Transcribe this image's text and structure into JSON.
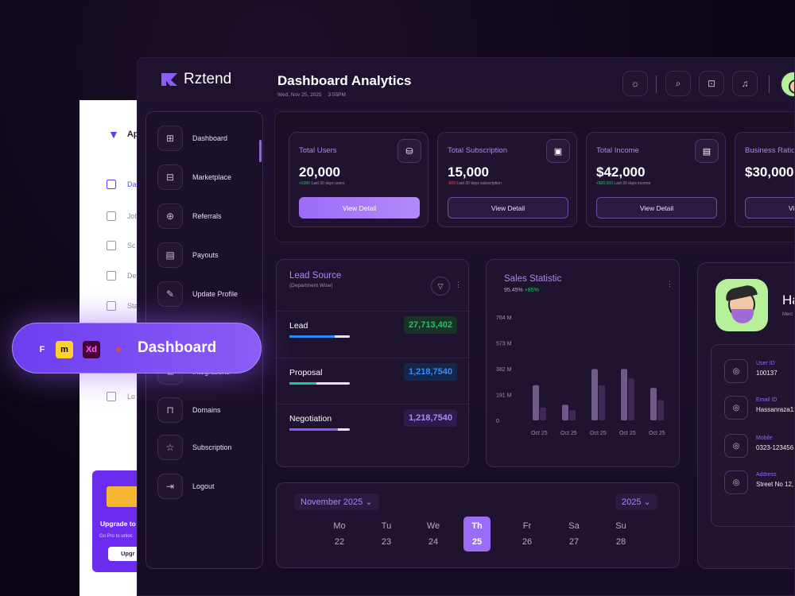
{
  "back_window": {
    "logo_text": "Ap",
    "items": [
      {
        "label": "Da",
        "icon": "grid-icon",
        "active": true
      },
      {
        "label": "Job",
        "icon": "briefcase-icon"
      },
      {
        "label": "Sc",
        "icon": "calendar-icon"
      },
      {
        "label": "De",
        "icon": "folder-icon"
      },
      {
        "label": "Sta",
        "icon": "chart-icon"
      },
      {
        "label": "Lo",
        "icon": "logout-icon"
      }
    ],
    "upgrade_title": "Upgrade to",
    "upgrade_text": "Go Pro to unloc",
    "upgrade_button": "Upgr"
  },
  "brand": {
    "name": "Rztend"
  },
  "header": {
    "title": "Dashboard Analytics",
    "date": "Wed, Nov 25, 2025",
    "time": "3:55PM"
  },
  "sidebar": {
    "items": [
      {
        "label": "Dashboard",
        "icon": "grid-icon"
      },
      {
        "label": "Marketplace",
        "icon": "store-icon"
      },
      {
        "label": "Referrals",
        "icon": "share-icon"
      },
      {
        "label": "Payouts",
        "icon": "receipt-icon"
      },
      {
        "label": "Update Profile",
        "icon": "user-edit-icon"
      },
      {
        "label": "Integrations",
        "icon": "plug-icon"
      },
      {
        "label": "Domains",
        "icon": "lock-icon"
      },
      {
        "label": "Subscription",
        "icon": "user-star-icon"
      },
      {
        "label": "Logout",
        "icon": "logout-icon"
      }
    ]
  },
  "stats": [
    {
      "label": "Total Users",
      "value": "20,000",
      "change": "+5000",
      "change_text": "Last 30 days users",
      "direction": "up",
      "button": "View Detail",
      "primary": true,
      "icon": "database-icon"
    },
    {
      "label": "Total Subscription",
      "value": "15,000",
      "change": "-800",
      "change_text": "Last 30 days subscription",
      "direction": "down",
      "button": "View Detail",
      "primary": false,
      "icon": "wallet-icon"
    },
    {
      "label": "Total Income",
      "value": "$42,000",
      "change": "+$20,000",
      "change_text": "Last 30 days income",
      "direction": "up",
      "button": "View Detail",
      "primary": false,
      "icon": "wallet-card-icon"
    },
    {
      "label": "Business Ratio",
      "value": "$30,000",
      "change": "",
      "change_text": "",
      "direction": "up",
      "button": "View Detail",
      "primary": false,
      "icon": "chart-icon"
    }
  ],
  "lead_source": {
    "title": "Lead Source",
    "subtitle": "(Department Wise)",
    "rows": [
      {
        "name": "Lead",
        "value": "27,713,402",
        "progress": 0.75,
        "bar_color": "#2f8af5",
        "chip_bg": "#163325",
        "chip_color": "#22c55e"
      },
      {
        "name": "Proposal",
        "value": "1,218,7540",
        "progress": 0.45,
        "bar_color": "#22c59a",
        "chip_bg": "#14264a",
        "chip_color": "#3b8cf5"
      },
      {
        "name": "Negotiation",
        "value": "1,218,7540",
        "progress": 0.8,
        "bar_color": "#8b5cf6",
        "chip_bg": "#2c1d48",
        "chip_color": "#a88bf2"
      }
    ]
  },
  "sales": {
    "title": "Sales Statistic",
    "percent": "95.45%",
    "change": "+85%"
  },
  "chart_data": {
    "type": "bar",
    "categories": [
      "Oct 25",
      "Oct 25",
      "Oct 25",
      "Oct 25",
      "Oct 25"
    ],
    "yticks": [
      "764 M",
      "573 M",
      "382 M",
      "191 M",
      "0"
    ],
    "ylim": [
      0,
      764
    ],
    "series": [
      {
        "values": [
          260,
          115,
          380,
          380,
          240
        ],
        "color": "#6f5a8a"
      },
      {
        "values": [
          95,
          75,
          260,
          310,
          150
        ],
        "color": "#3c2a55"
      }
    ]
  },
  "profile": {
    "name": "Ha",
    "role": "Merc",
    "fields": [
      {
        "label": "User ID",
        "value": "100137",
        "icon": "user-icon"
      },
      {
        "label": "Email ID",
        "value": "Hassanraza12",
        "icon": "mail-icon"
      },
      {
        "label": "Mobile",
        "value": "0323-123456",
        "icon": "phone-icon"
      },
      {
        "label": "Address",
        "value": "Street No 12,",
        "icon": "pin-icon"
      }
    ]
  },
  "calendar": {
    "month": "November 2025",
    "year": "2025",
    "days": [
      {
        "name": "Mo",
        "date": "22"
      },
      {
        "name": "Tu",
        "date": "23"
      },
      {
        "name": "We",
        "date": "24"
      },
      {
        "name": "Th",
        "date": "25",
        "selected": true
      },
      {
        "name": "Fr",
        "date": "26"
      },
      {
        "name": "Sa",
        "date": "27"
      },
      {
        "name": "Su",
        "date": "28"
      }
    ]
  },
  "tools_pill": {
    "label": "Dashboard",
    "tools": [
      {
        "name": "framer-icon",
        "glyph": "F",
        "bg": "transparent",
        "color": "#ffffff"
      },
      {
        "name": "miro-icon",
        "glyph": "m",
        "bg": "#ffd02f",
        "color": "#050038"
      },
      {
        "name": "xd-icon",
        "glyph": "Xd",
        "bg": "#470137",
        "color": "#ff61f6"
      },
      {
        "name": "figma-icon",
        "glyph": "✦",
        "bg": "transparent",
        "color": "#f24e1e"
      }
    ]
  },
  "topbar_icons": [
    "sun-icon",
    "search-icon",
    "gift-icon",
    "bell-icon"
  ]
}
